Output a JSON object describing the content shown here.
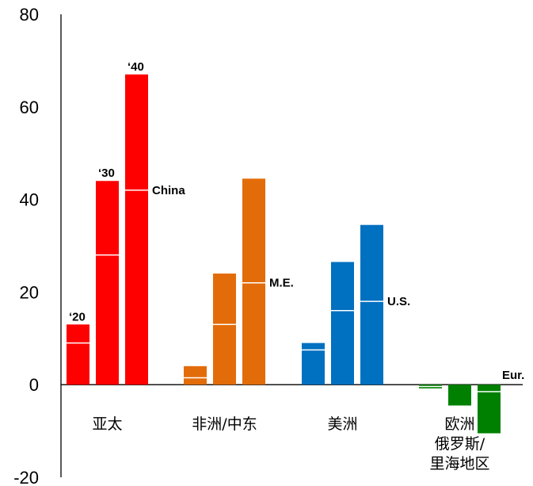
{
  "chart_data": {
    "type": "bar",
    "ylim": [
      -20,
      80
    ],
    "yticks": [
      "80",
      "60",
      "40",
      "20",
      "0",
      "-20"
    ],
    "grid": false,
    "groups": [
      {
        "category": "亚太",
        "color": "#ff0000",
        "bars": [
          {
            "year": "'20",
            "value": 13,
            "split": 9,
            "label": "‘20",
            "label_pos": "top"
          },
          {
            "year": "'30",
            "value": 44,
            "split": 28,
            "label": "‘30",
            "label_pos": "top"
          },
          {
            "year": "'40",
            "value": 67,
            "split": 42,
            "label": "‘40",
            "label_pos": "top"
          }
        ],
        "annotation": "China"
      },
      {
        "category": "非洲/中东",
        "color": "#e36c0a",
        "bars": [
          {
            "year": "'20",
            "value": 4,
            "split": 1.5
          },
          {
            "year": "'30",
            "value": 24,
            "split": 13
          },
          {
            "year": "'40",
            "value": 44.5,
            "split": 22
          }
        ],
        "annotation": "M.E."
      },
      {
        "category": "美洲",
        "color": "#0070c0",
        "bars": [
          {
            "year": "'20",
            "value": 9,
            "split": 7.5
          },
          {
            "year": "'30",
            "value": 26.5,
            "split": 16
          },
          {
            "year": "'40",
            "value": 34.5,
            "split": 18
          }
        ],
        "annotation": "U.S."
      },
      {
        "category_lines": [
          "欧洲",
          "俄罗斯/",
          "里海地区"
        ],
        "color": "#008000",
        "bars": [
          {
            "year": "'20",
            "value": -0.8,
            "split": -0.4
          },
          {
            "year": "'30",
            "value": -4.5,
            "split": null
          },
          {
            "year": "'40",
            "value": -10.5,
            "split": -1.5
          }
        ],
        "annotation": "Eur."
      }
    ]
  }
}
